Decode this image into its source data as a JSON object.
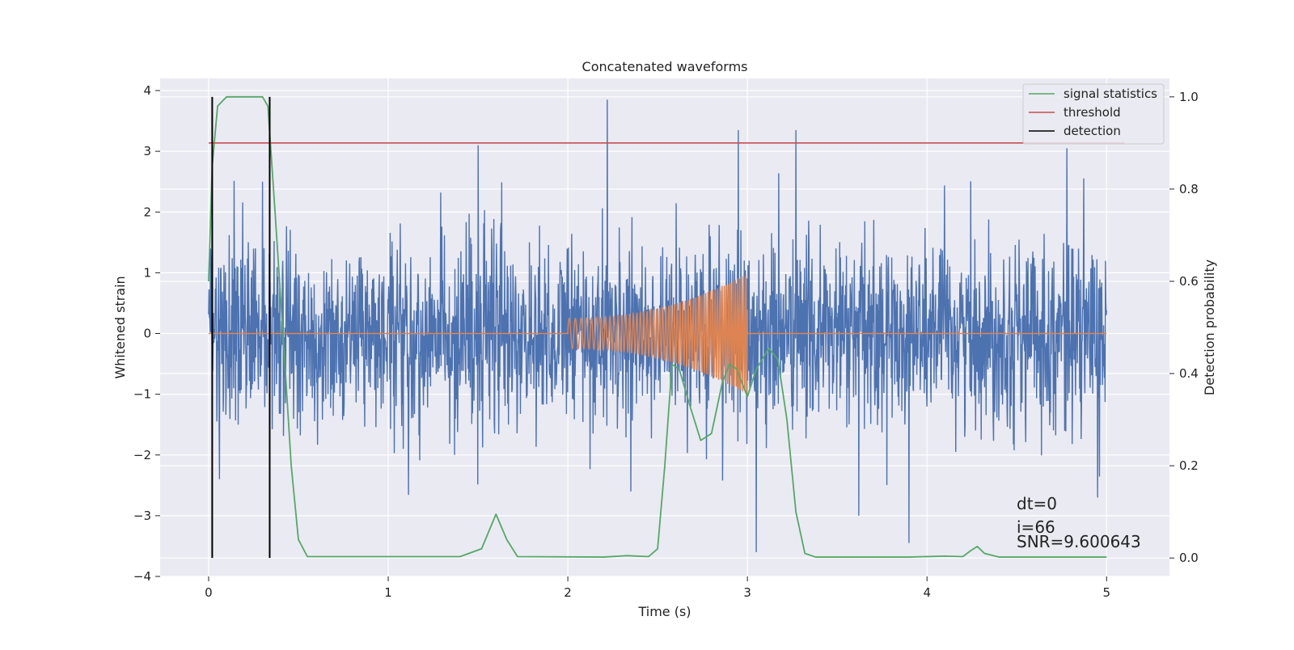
{
  "chart_data": {
    "type": "line",
    "title": "Concatenated waveforms",
    "xlabel": "Time (s)",
    "ylabel_left": "Whitened strain",
    "ylabel_right": "Detection probability",
    "xlim": [
      -0.27,
      5.35
    ],
    "ylim_left": [
      -4.0,
      4.2
    ],
    "ylim_right": [
      -0.04,
      1.04
    ],
    "x_ticks": [
      0,
      1,
      2,
      3,
      4,
      5
    ],
    "x_tick_labels": [
      "0",
      "1",
      "2",
      "3",
      "4",
      "5"
    ],
    "y_left_ticks": [
      -4,
      -3,
      -2,
      -1,
      0,
      1,
      2,
      3,
      4
    ],
    "y_left_tick_labels": [
      "−4",
      "−3",
      "−2",
      "−1",
      "0",
      "1",
      "2",
      "3",
      "4"
    ],
    "y_right_ticks": [
      0.0,
      0.2,
      0.4,
      0.6,
      0.8,
      1.0
    ],
    "y_right_tick_labels": [
      "0.0",
      "0.2",
      "0.4",
      "0.6",
      "0.8",
      "1.0"
    ],
    "grid": true,
    "legend_position": "top-right",
    "series": [
      {
        "name": "",
        "axis": "left",
        "color": "#4c72b0",
        "kind": "whitened strain noise",
        "x_range": [
          0,
          5
        ],
        "typical_range": [
          -1.8,
          2.0
        ],
        "spikes": [
          [
            0.01,
            1.4
          ],
          [
            0.06,
            -2.4
          ],
          [
            0.3,
            2.5
          ],
          [
            1.5,
            3.1
          ],
          [
            2.22,
            3.85
          ],
          [
            2.35,
            -2.6
          ],
          [
            2.95,
            3.35
          ],
          [
            3.05,
            -3.6
          ],
          [
            3.27,
            3.35
          ],
          [
            3.62,
            -3.0
          ],
          [
            3.9,
            -3.45
          ],
          [
            4.78,
            3.05
          ],
          [
            4.95,
            -2.7
          ]
        ]
      },
      {
        "name": "",
        "axis": "left",
        "color": "#dd8452",
        "kind": "chirp injection",
        "x_range": [
          0,
          5
        ],
        "chirp_start": 2.0,
        "chirp_end": 3.0,
        "amplitude_start": 0.25,
        "amplitude_end": 1.0
      },
      {
        "name": "signal statistics",
        "axis": "right",
        "color": "#55a868",
        "points": [
          [
            0.0,
            0.6
          ],
          [
            0.02,
            0.85
          ],
          [
            0.05,
            0.98
          ],
          [
            0.1,
            1.0
          ],
          [
            0.3,
            1.0
          ],
          [
            0.33,
            0.98
          ],
          [
            0.37,
            0.75
          ],
          [
            0.42,
            0.45
          ],
          [
            0.46,
            0.2
          ],
          [
            0.5,
            0.04
          ],
          [
            0.55,
            0.003
          ],
          [
            1.4,
            0.003
          ],
          [
            1.52,
            0.02
          ],
          [
            1.6,
            0.095
          ],
          [
            1.66,
            0.04
          ],
          [
            1.72,
            0.003
          ],
          [
            2.2,
            0.002
          ],
          [
            2.33,
            0.005
          ],
          [
            2.45,
            0.003
          ],
          [
            2.5,
            0.02
          ],
          [
            2.54,
            0.2
          ],
          [
            2.58,
            0.42
          ],
          [
            2.62,
            0.41
          ],
          [
            2.68,
            0.33
          ],
          [
            2.74,
            0.255
          ],
          [
            2.8,
            0.27
          ],
          [
            2.86,
            0.38
          ],
          [
            2.9,
            0.42
          ],
          [
            2.94,
            0.41
          ],
          [
            3.0,
            0.35
          ],
          [
            3.05,
            0.41
          ],
          [
            3.12,
            0.455
          ],
          [
            3.17,
            0.43
          ],
          [
            3.22,
            0.3
          ],
          [
            3.27,
            0.1
          ],
          [
            3.32,
            0.01
          ],
          [
            3.38,
            0.002
          ],
          [
            3.9,
            0.002
          ],
          [
            4.1,
            0.004
          ],
          [
            4.2,
            0.003
          ],
          [
            4.24,
            0.015
          ],
          [
            4.28,
            0.025
          ],
          [
            4.32,
            0.01
          ],
          [
            4.4,
            0.002
          ],
          [
            5.0,
            0.002
          ]
        ]
      },
      {
        "name": "threshold",
        "axis": "right",
        "color": "#c44e52",
        "x_range": [
          0,
          5.1
        ],
        "value": 0.9
      },
      {
        "name": "detection",
        "axis": "right",
        "color": "#000000",
        "x": [
          0.02,
          0.34
        ],
        "y_range": [
          0.0,
          1.0
        ]
      }
    ],
    "annotations": {
      "dt": "dt=0",
      "i": "i=66",
      "snr": "SNR=9.600643"
    }
  }
}
